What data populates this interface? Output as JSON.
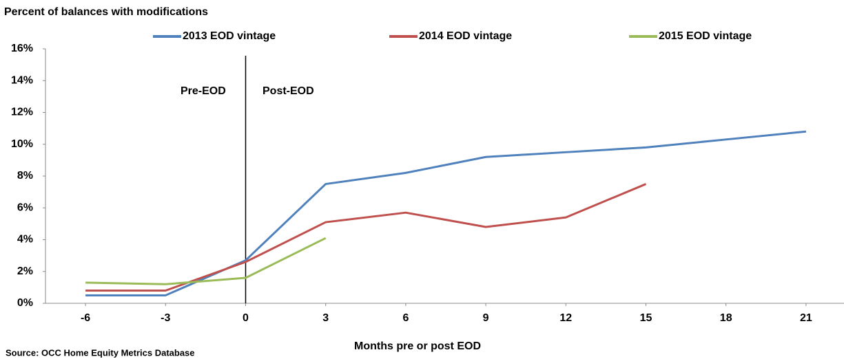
{
  "chart_data": {
    "type": "line",
    "title": "Percent of balances with modifications",
    "x_label": "Months pre or post EOD",
    "source": "Source:  OCC Home Equity Metrics Database",
    "annotations": [
      "Pre-EOD",
      "Post-EOD"
    ],
    "vline_x": 0,
    "x": [
      -6,
      -3,
      0,
      3,
      6,
      9,
      12,
      15,
      18,
      21
    ],
    "xlim": [
      -7.5,
      22.5
    ],
    "xticks": [
      -6,
      -3,
      0,
      3,
      6,
      9,
      12,
      15,
      18,
      21
    ],
    "ylim": [
      0,
      16
    ],
    "yticks": [
      {
        "value": 0,
        "label": "0%"
      },
      {
        "value": 2,
        "label": "2%"
      },
      {
        "value": 4,
        "label": "4%"
      },
      {
        "value": 6,
        "label": "6%"
      },
      {
        "value": 8,
        "label": "8%"
      },
      {
        "value": 10,
        "label": "10%"
      },
      {
        "value": 12,
        "label": "12%"
      },
      {
        "value": 14,
        "label": "14%"
      },
      {
        "value": 16,
        "label": "16%"
      }
    ],
    "series": [
      {
        "name": "2013 EOD vintage",
        "color": "#4f81bd",
        "values": [
          0.5,
          0.5,
          2.7,
          7.5,
          8.2,
          9.2,
          9.5,
          9.8,
          10.3,
          10.8
        ]
      },
      {
        "name": "2014 EOD vintage",
        "color": "#c0504d",
        "values": [
          0.8,
          0.8,
          2.6,
          5.1,
          5.7,
          4.8,
          5.4,
          7.5,
          null,
          null
        ]
      },
      {
        "name": "2015 EOD vintage",
        "color": "#9bbb59",
        "values": [
          1.3,
          1.2,
          1.6,
          4.1,
          null,
          null,
          null,
          null,
          null,
          null
        ]
      }
    ]
  }
}
